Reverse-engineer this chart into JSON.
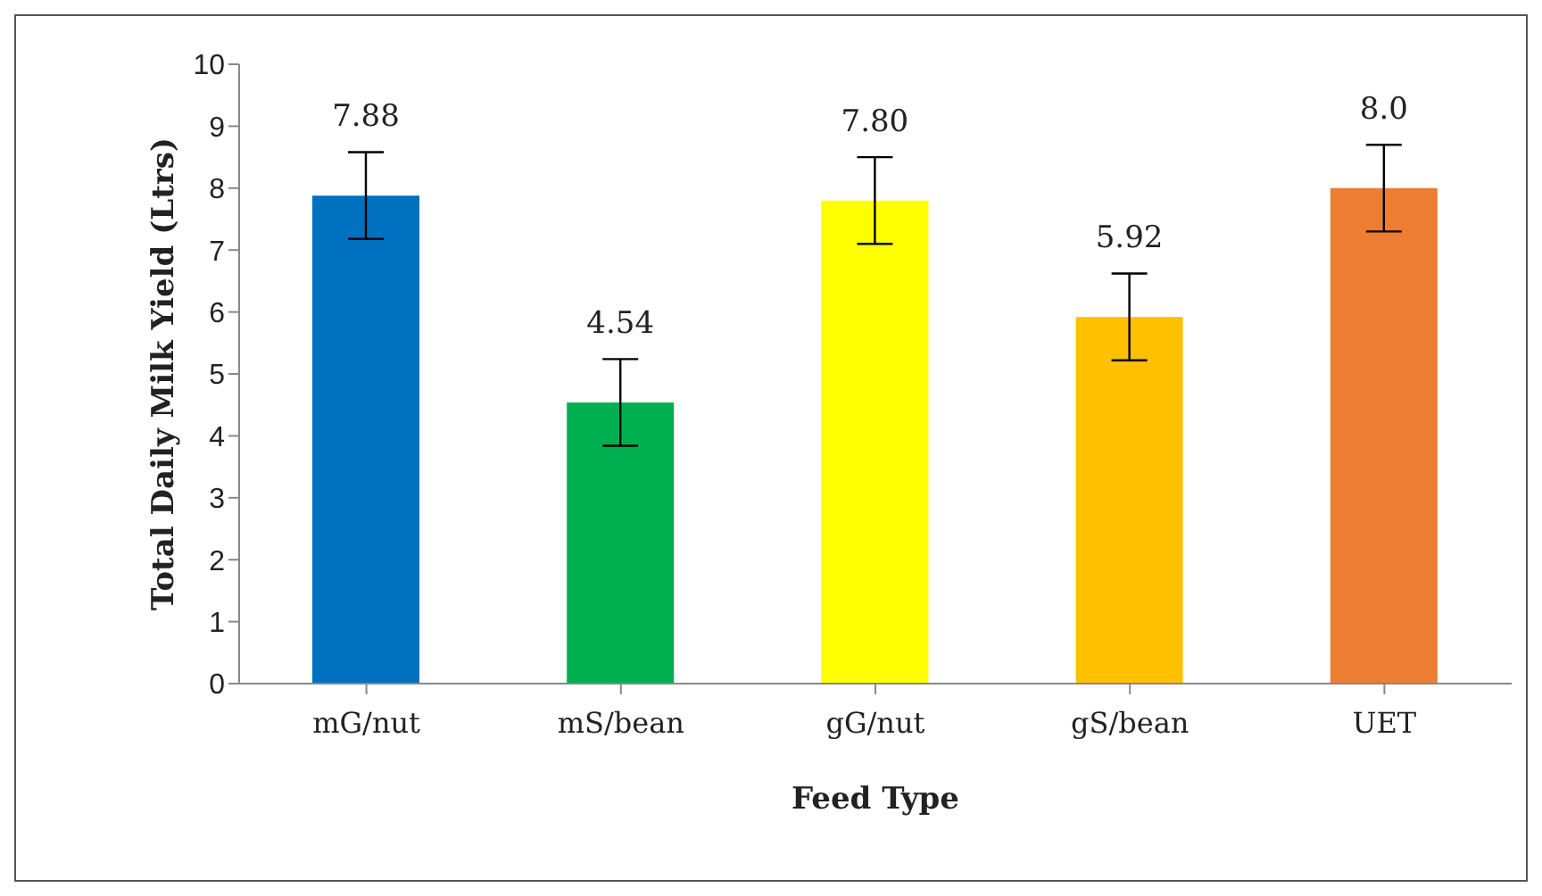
{
  "chart_data": {
    "type": "bar",
    "xlabel": "Feed Type",
    "ylabel": "Total Daily Milk Yield (Ltrs)",
    "categories": [
      "mG/nut",
      "mS/bean",
      "gG/nut",
      "gS/bean",
      "UET"
    ],
    "values": [
      7.88,
      4.54,
      7.8,
      5.92,
      8.0
    ],
    "colors": [
      "#0070c0",
      "#00b050",
      "#ffff00",
      "#ffc000",
      "#ed7d31"
    ],
    "errors": [
      0.7,
      0.7,
      0.7,
      0.7,
      0.7
    ],
    "value_labels": [
      "7.88",
      "4.54",
      "7.80",
      "5.92",
      "8.0"
    ],
    "ylim": [
      0,
      10
    ],
    "yticks": [
      0,
      1,
      2,
      3,
      4,
      5,
      6,
      7,
      8,
      9,
      10
    ]
  }
}
